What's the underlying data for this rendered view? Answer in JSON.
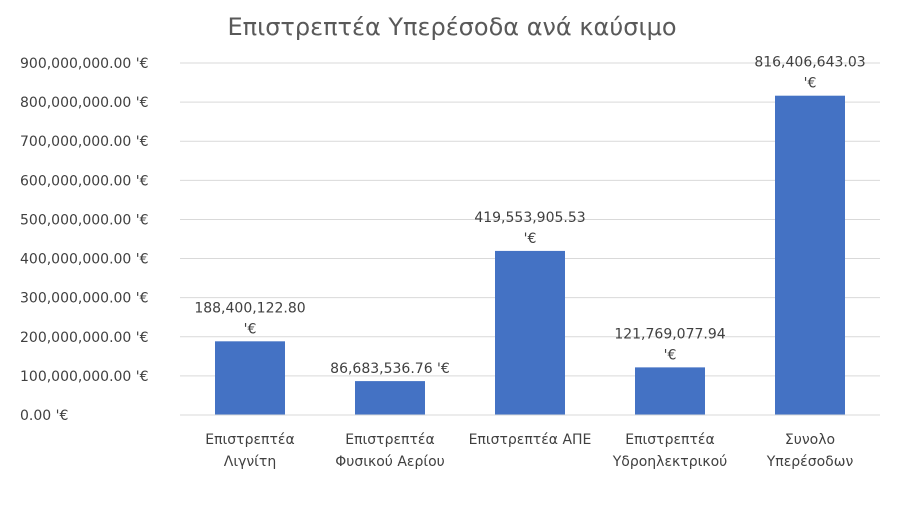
{
  "chart_data": {
    "type": "bar",
    "title": "Επιστρεπτέα Υπερέσοδα ανά καύσιμο",
    "categories": [
      [
        "Επιστρεπτέα",
        "Λιγνίτη"
      ],
      [
        "Επιστρεπτέα",
        "Φυσικού Αερίου"
      ],
      [
        "Επιστρεπτέα ΑΠΕ"
      ],
      [
        "Επιστρεπτέα",
        "Υδροηλεκτρικού"
      ],
      [
        "Συνολο",
        "Υπερέσοδων"
      ]
    ],
    "values": [
      188400122.8,
      86683536.76,
      419553905.53,
      121769077.94,
      816406643.03
    ],
    "data_labels": [
      [
        "188,400,122.80",
        "'€"
      ],
      [
        "86,683,536.76 '€"
      ],
      [
        "419,553,905.53",
        "'€"
      ],
      [
        "121,769,077.94",
        "'€"
      ],
      [
        "816,406,643.03",
        "'€"
      ]
    ],
    "y_ticks": [
      "0.00 '€",
      "100,000,000.00 '€",
      "200,000,000.00 '€",
      "300,000,000.00 '€",
      "400,000,000.00 '€",
      "500,000,000.00 '€",
      "600,000,000.00 '€",
      "700,000,000.00 '€",
      "800,000,000.00 '€",
      "900,000,000.00 '€"
    ],
    "ylim": [
      0,
      900000000
    ],
    "y_step": 100000000,
    "grid": true,
    "colors": {
      "bar": "#4472C4",
      "grid": "#d9d9d9",
      "text": "#404040",
      "title": "#595959"
    }
  }
}
